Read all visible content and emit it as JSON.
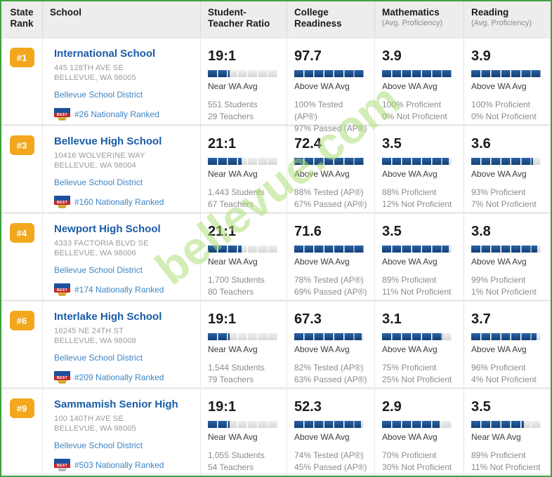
{
  "watermark": {
    "text": "bellevue.com",
    "color": "#a8dd70"
  },
  "colors": {
    "outer_border": "#3fa13f",
    "header_bg": "#ededed",
    "rank_badge_bg": "#f2a71d",
    "bar_fill": "#123f75",
    "bar_fill_light": "#2a62a5",
    "school_link": "#1a5ca8",
    "sub_link": "#3d85c6",
    "address_text": "#9a9a9a"
  },
  "header": {
    "rank": "State Rank",
    "school": "School",
    "ratio": "Student-Teacher Ratio",
    "college": "College Readiness",
    "math": "Mathematics",
    "math_sub": "(Avg. Proficiency)",
    "reading": "Reading",
    "reading_sub": "(Avg. Proficiency)"
  },
  "best_badge_label": "BEST",
  "rows": [
    {
      "rank": "#1",
      "name": "International School",
      "address1": "445 128TH AVE SE",
      "address2": "BELLEVUE, WA 98005",
      "district": "Bellevue School District",
      "badge_style": "gold",
      "national_rank": "#26 Nationally Ranked",
      "stats": {
        "ratio": {
          "value": "19:1",
          "bar_pct": 31,
          "label": "Near WA Avg",
          "line1": "551 Students",
          "line2": "29 Teachers"
        },
        "college": {
          "value": "97.7",
          "bar_pct": 100,
          "label": "Above WA Avg",
          "line1": "100% Tested (AP®)",
          "line2": "97% Passed (AP®)"
        },
        "math": {
          "value": "3.9",
          "bar_pct": 100,
          "label": "Above WA Avg",
          "line1": "100% Proficient",
          "line2": "0% Not Proficient"
        },
        "reading": {
          "value": "3.9",
          "bar_pct": 100,
          "label": "Above WA Avg",
          "line1": "100% Proficient",
          "line2": "0% Not Proficient"
        }
      }
    },
    {
      "rank": "#3",
      "name": "Bellevue High School",
      "address1": "10416 WOLVERINE WAY",
      "address2": "BELLEVUE, WA 98004",
      "district": "Bellevue School District",
      "badge_style": "gold",
      "national_rank": "#160 Nationally Ranked",
      "stats": {
        "ratio": {
          "value": "21:1",
          "bar_pct": 48,
          "label": "Near WA Avg",
          "line1": "1,443 Students",
          "line2": "67 Teachers"
        },
        "college": {
          "value": "72.4",
          "bar_pct": 100,
          "label": "Above WA Avg",
          "line1": "88% Tested (AP®)",
          "line2": "67% Passed (AP®)"
        },
        "math": {
          "value": "3.5",
          "bar_pct": 95,
          "label": "Above WA Avg",
          "line1": "88% Proficient",
          "line2": "12% Not Proficient"
        },
        "reading": {
          "value": "3.6",
          "bar_pct": 88,
          "label": "Above WA Avg",
          "line1": "93% Proficient",
          "line2": "7% Not Proficient"
        }
      }
    },
    {
      "rank": "#4",
      "name": "Newport High School",
      "address1": "4333 FACTORIA BLVD SE",
      "address2": "BELLEVUE, WA 98006",
      "district": "Bellevue School District",
      "badge_style": "gold",
      "national_rank": "#174 Nationally Ranked",
      "stats": {
        "ratio": {
          "value": "21:1",
          "bar_pct": 48,
          "label": "Near WA Avg",
          "line1": "1,700 Students",
          "line2": "80 Teachers"
        },
        "college": {
          "value": "71.6",
          "bar_pct": 100,
          "label": "Above WA Avg",
          "line1": "78% Tested (AP®)",
          "line2": "69% Passed (AP®)"
        },
        "math": {
          "value": "3.5",
          "bar_pct": 95,
          "label": "Above WA Avg",
          "line1": "89% Proficient",
          "line2": "11% Not Proficient"
        },
        "reading": {
          "value": "3.8",
          "bar_pct": 94,
          "label": "Above WA Avg",
          "line1": "99% Proficient",
          "line2": "1% Not Proficient"
        }
      }
    },
    {
      "rank": "#6",
      "name": "Interlake High School",
      "address1": "16245 NE 24TH ST",
      "address2": "BELLEVUE, WA 98008",
      "district": "Bellevue School District",
      "badge_style": "gold",
      "national_rank": "#209 Nationally Ranked",
      "stats": {
        "ratio": {
          "value": "19:1",
          "bar_pct": 31,
          "label": "Near WA Avg",
          "line1": "1,544 Students",
          "line2": "79 Teachers"
        },
        "college": {
          "value": "67.3",
          "bar_pct": 96,
          "label": "Above WA Avg",
          "line1": "82% Tested (AP®)",
          "line2": "63% Passed (AP®)"
        },
        "math": {
          "value": "3.1",
          "bar_pct": 86,
          "label": "Above WA Avg",
          "line1": "75% Proficient",
          "line2": "25% Not Proficient"
        },
        "reading": {
          "value": "3.7",
          "bar_pct": 93,
          "label": "Above WA Avg",
          "line1": "96% Proficient",
          "line2": "4% Not Proficient"
        }
      }
    },
    {
      "rank": "#9",
      "name": "Sammamish Senior High",
      "address1": "100 140TH AVE SE",
      "address2": "BELLEVUE, WA 98005",
      "district": "Bellevue School District",
      "badge_style": "silver",
      "national_rank": "#503 Nationally Ranked",
      "stats": {
        "ratio": {
          "value": "19:1",
          "bar_pct": 31,
          "label": "Near WA Avg",
          "line1": "1,055 Students",
          "line2": "54 Teachers"
        },
        "college": {
          "value": "52.3",
          "bar_pct": 95,
          "label": "Above WA Avg",
          "line1": "74% Tested (AP®)",
          "line2": "45% Passed (AP®)"
        },
        "math": {
          "value": "2.9",
          "bar_pct": 82,
          "label": "Above WA Avg",
          "line1": "70% Proficient",
          "line2": "30% Not Proficient"
        },
        "reading": {
          "value": "3.5",
          "bar_pct": 75,
          "label": "Near WA Avg",
          "line1": "89% Proficient",
          "line2": "11% Not Proficient"
        }
      }
    }
  ]
}
